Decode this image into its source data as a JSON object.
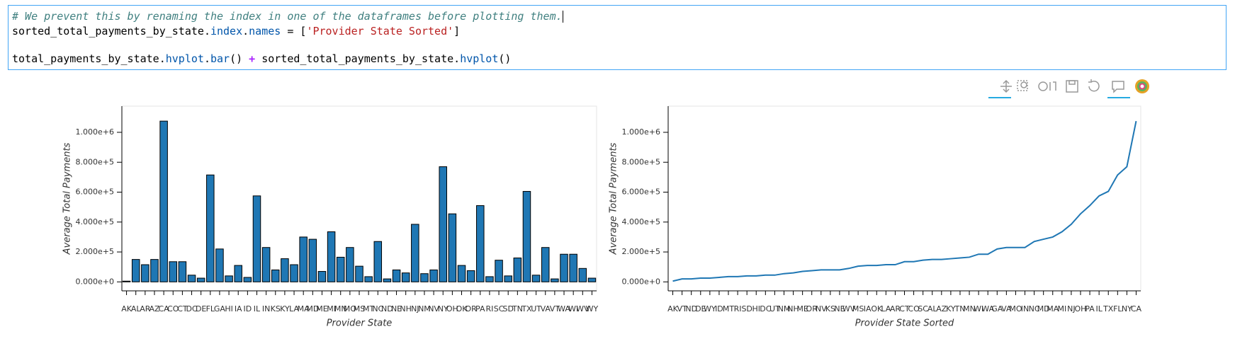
{
  "code": {
    "comment": "# We prevent this by renaming the index in one of the dataframes before plotting them.",
    "line1": [
      "sorted_total_payments_by_state",
      ".",
      "index",
      ".",
      "names",
      " = [",
      "'Provider State Sorted'",
      "]"
    ],
    "line2": [
      "total_payments_by_state",
      ".",
      "hvplot",
      ".",
      "bar",
      "() ",
      "+",
      " sorted_total_payments_by_state",
      ".",
      "hvplot",
      "()"
    ]
  },
  "chart_data": [
    {
      "type": "bar",
      "x_label": "Provider State",
      "y_label": "Average Total Payments",
      "color": "#1f77b4",
      "categories": [
        "AK",
        "AL",
        "AR",
        "AZ",
        "CA",
        "CO",
        "CT",
        "DC",
        "DE",
        "FL",
        "GA",
        "HI",
        "IA",
        "ID",
        "IL",
        "IN",
        "KS",
        "KY",
        "LA",
        "MA",
        "MD",
        "ME",
        "MI",
        "MN",
        "MO",
        "MS",
        "MT",
        "NC",
        "ND",
        "NE",
        "NH",
        "NJ",
        "NM",
        "NV",
        "NY",
        "OH",
        "OK",
        "OR",
        "PA",
        "RI",
        "SC",
        "SD",
        "TN",
        "TX",
        "UT",
        "VA",
        "VT",
        "WA",
        "WI",
        "WV",
        "WY"
      ],
      "values": [
        5000,
        150000,
        115000,
        150000,
        1075000,
        135000,
        135000,
        45000,
        25000,
        715000,
        220000,
        40000,
        110000,
        30000,
        575000,
        230000,
        80000,
        155000,
        115000,
        300000,
        285000,
        70000,
        335000,
        165000,
        230000,
        105000,
        35000,
        270000,
        20000,
        80000,
        60000,
        385000,
        55000,
        80000,
        770000,
        455000,
        110000,
        75000,
        510000,
        35000,
        145000,
        40000,
        160000,
        605000,
        45000,
        230000,
        20000,
        185000,
        185000,
        90000,
        25000
      ],
      "ylim": [
        -60000,
        1175000
      ],
      "yticks": [
        {
          "value": 0,
          "label": "0.000e+0"
        },
        {
          "value": 200000,
          "label": "2.000e+5"
        },
        {
          "value": 400000,
          "label": "4.000e+5"
        },
        {
          "value": 600000,
          "label": "6.000e+5"
        },
        {
          "value": 800000,
          "label": "8.000e+5"
        },
        {
          "value": 1000000,
          "label": "1.000e+6"
        }
      ]
    },
    {
      "type": "line",
      "x_label": "Provider State Sorted",
      "y_label": "Average Total Payments",
      "color": "#1f77b4",
      "categories": [
        "AK",
        "VT",
        "ND",
        "DE",
        "WY",
        "ID",
        "MT",
        "RI",
        "SD",
        "HI",
        "DC",
        "UT",
        "NM",
        "NH",
        "ME",
        "OR",
        "NV",
        "KS",
        "NE",
        "WV",
        "MS",
        "IA",
        "OK",
        "LA",
        "AR",
        "CT",
        "CO",
        "SC",
        "AL",
        "AZ",
        "KY",
        "TN",
        "MN",
        "WI",
        "WA",
        "GA",
        "VA",
        "MO",
        "IN",
        "NC",
        "MD",
        "MA",
        "MI",
        "NJ",
        "OH",
        "PA",
        "IL",
        "TX",
        "FL",
        "NY",
        "CA"
      ],
      "values": [
        5000,
        20000,
        20000,
        25000,
        25000,
        30000,
        35000,
        35000,
        40000,
        40000,
        45000,
        45000,
        55000,
        60000,
        70000,
        75000,
        80000,
        80000,
        80000,
        90000,
        105000,
        110000,
        110000,
        115000,
        115000,
        135000,
        135000,
        145000,
        150000,
        150000,
        155000,
        160000,
        165000,
        185000,
        185000,
        220000,
        230000,
        230000,
        230000,
        270000,
        285000,
        300000,
        335000,
        385000,
        455000,
        510000,
        575000,
        605000,
        715000,
        770000,
        1075000
      ],
      "ylim": [
        -60000,
        1175000
      ],
      "yticks": [
        {
          "value": 0,
          "label": "0.000e+0"
        },
        {
          "value": 200000,
          "label": "2.000e+5"
        },
        {
          "value": 400000,
          "label": "4.000e+5"
        },
        {
          "value": 600000,
          "label": "6.000e+5"
        },
        {
          "value": 800000,
          "label": "8.000e+5"
        },
        {
          "value": 1000000,
          "label": "1.000e+6"
        }
      ]
    }
  ]
}
